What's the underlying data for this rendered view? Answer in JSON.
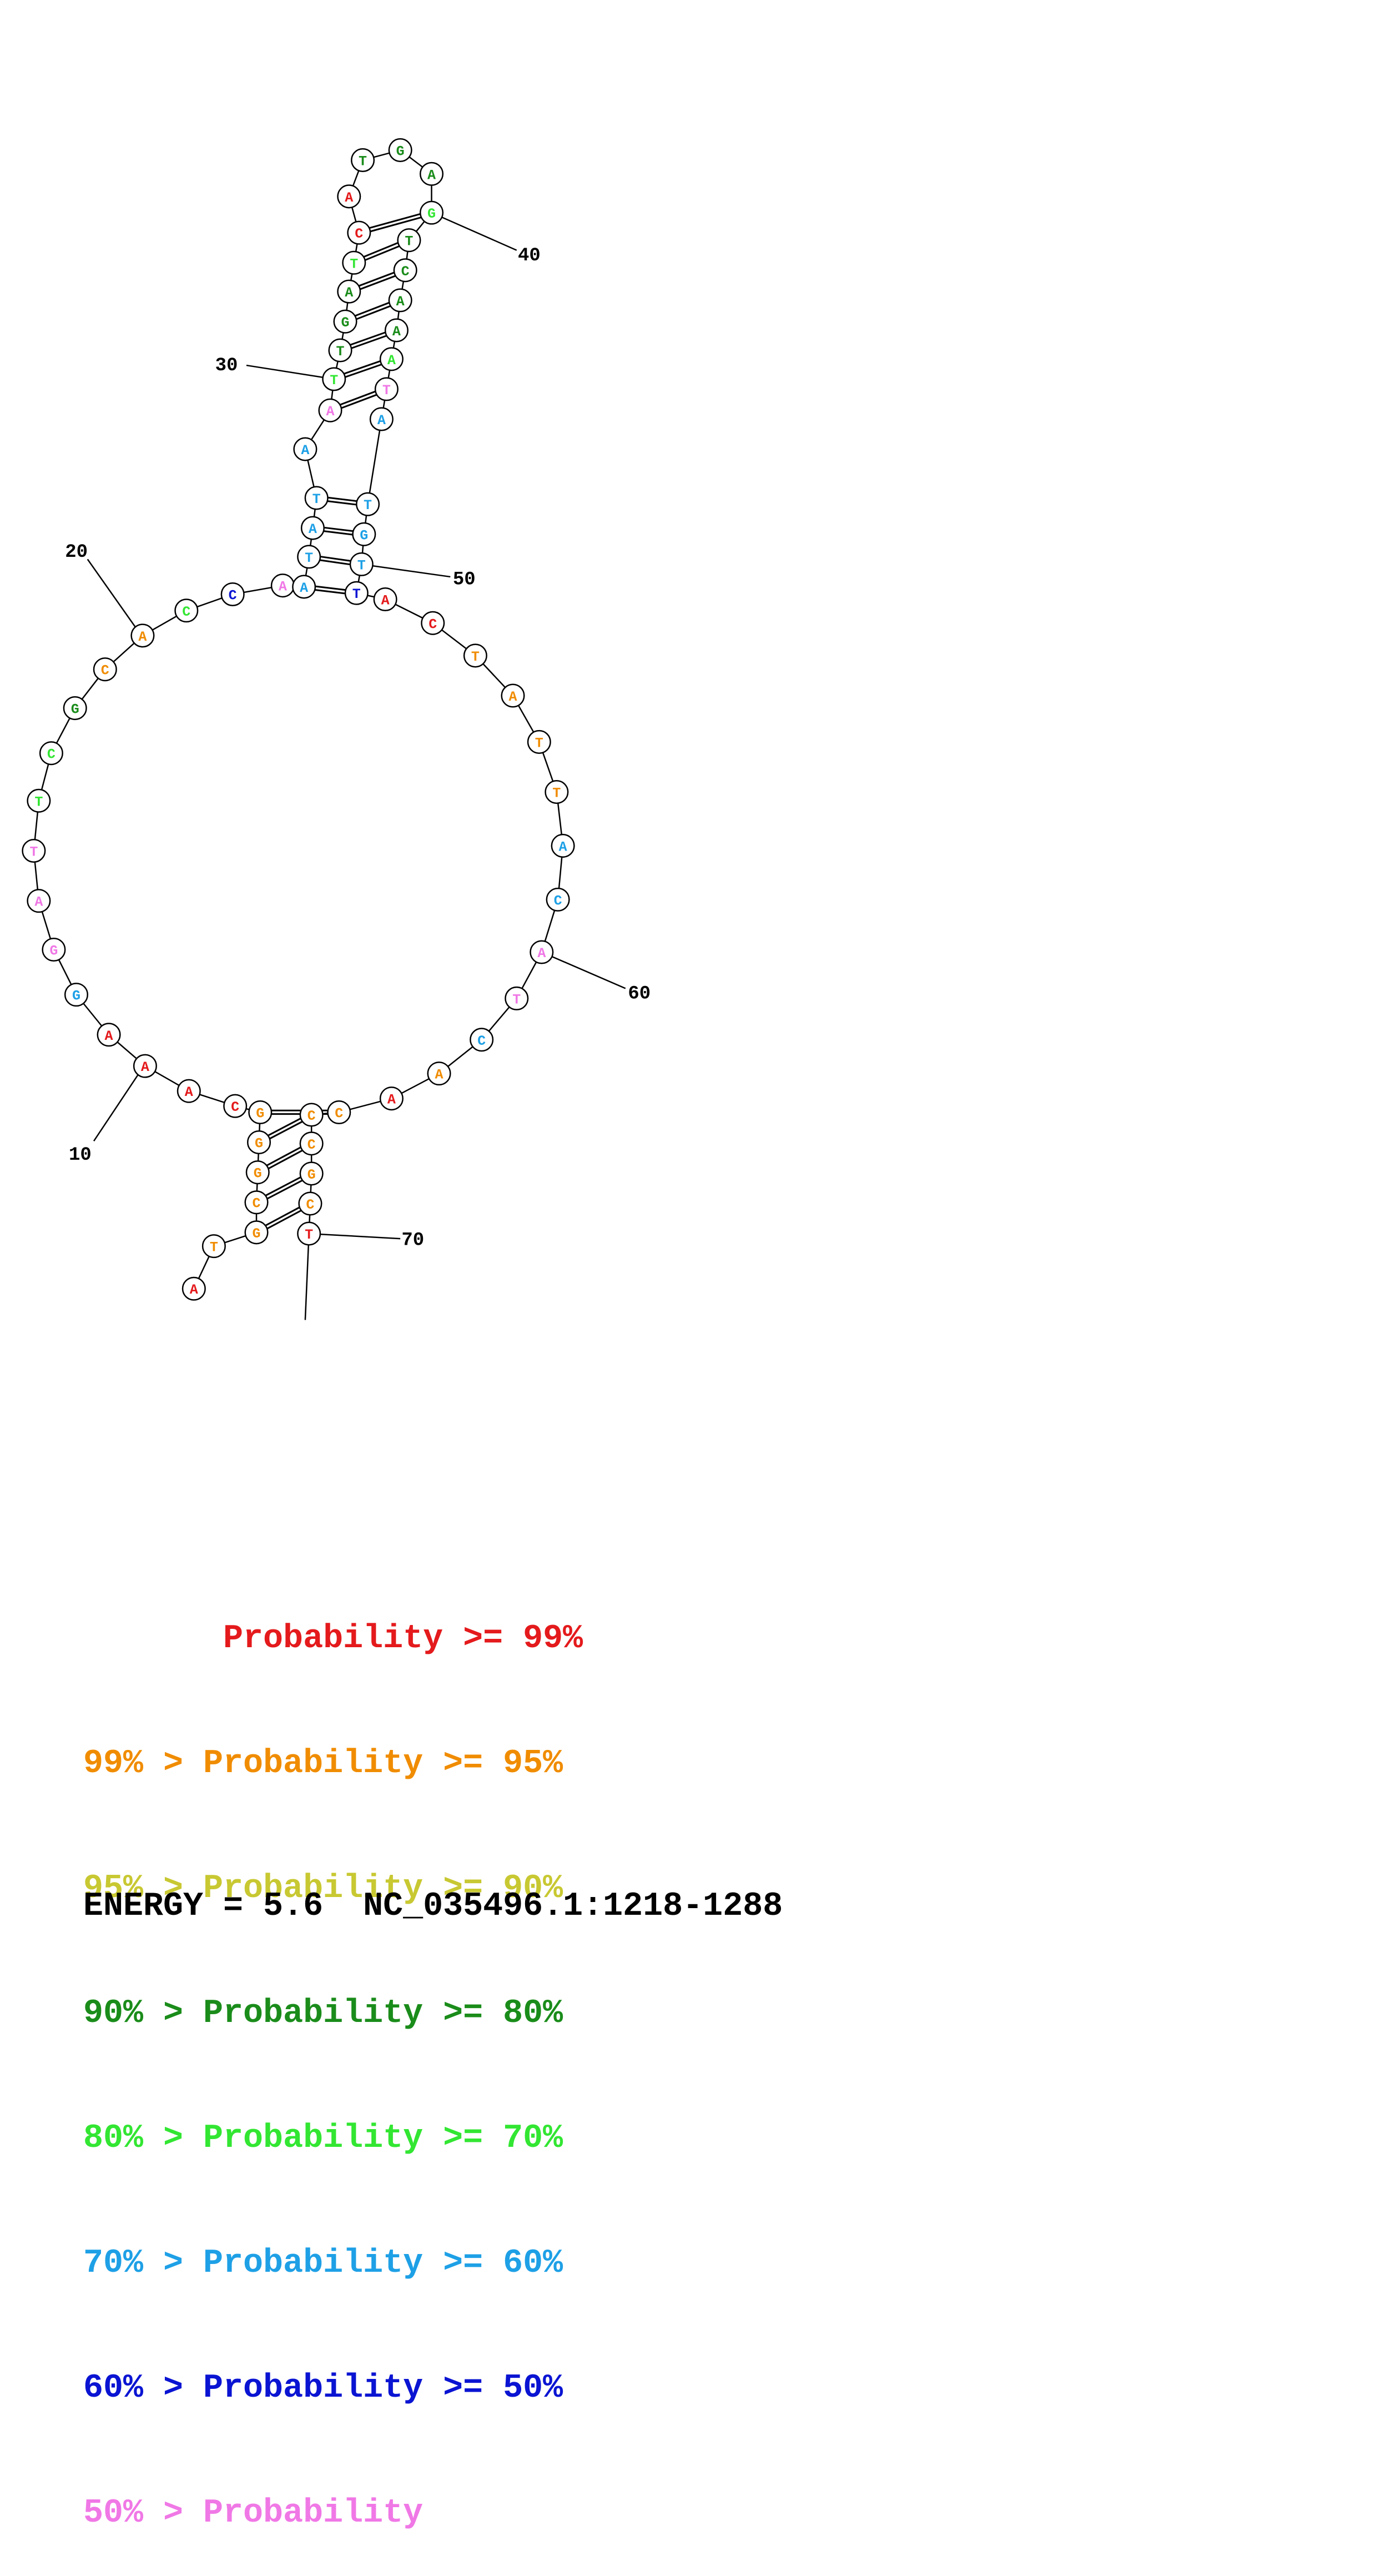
{
  "colors": {
    "red": "#e41a1c",
    "orange": "#f08c00",
    "yellow": "#c8c832",
    "darkgreen": "#1a8c1a",
    "green": "#32e632",
    "cyan": "#1ea0e6",
    "blue": "#0a14d2",
    "pink": "#f078e6",
    "black": "#000000"
  },
  "nucleotides": [
    {
      "b": "A",
      "c": "red"
    },
    {
      "b": "T",
      "c": "orange"
    },
    {
      "b": "G",
      "c": "orange"
    },
    {
      "b": "C",
      "c": "orange"
    },
    {
      "b": "G",
      "c": "orange"
    },
    {
      "b": "G",
      "c": "orange"
    },
    {
      "b": "G",
      "c": "orange"
    },
    {
      "b": "C",
      "c": "red"
    },
    {
      "b": "A",
      "c": "red"
    },
    {
      "b": "A",
      "c": "red"
    },
    {
      "b": "A",
      "c": "red"
    },
    {
      "b": "G",
      "c": "cyan"
    },
    {
      "b": "G",
      "c": "pink"
    },
    {
      "b": "A",
      "c": "pink"
    },
    {
      "b": "T",
      "c": "pink"
    },
    {
      "b": "T",
      "c": "green"
    },
    {
      "b": "C",
      "c": "green"
    },
    {
      "b": "G",
      "c": "darkgreen"
    },
    {
      "b": "C",
      "c": "orange"
    },
    {
      "b": "A",
      "c": "orange"
    },
    {
      "b": "C",
      "c": "green"
    },
    {
      "b": "C",
      "c": "blue"
    },
    {
      "b": "A",
      "c": "pink"
    },
    {
      "b": "A",
      "c": "cyan"
    },
    {
      "b": "T",
      "c": "cyan"
    },
    {
      "b": "A",
      "c": "cyan"
    },
    {
      "b": "T",
      "c": "cyan"
    },
    {
      "b": "A",
      "c": "cyan"
    },
    {
      "b": "A",
      "c": "pink"
    },
    {
      "b": "T",
      "c": "green"
    },
    {
      "b": "T",
      "c": "darkgreen"
    },
    {
      "b": "G",
      "c": "darkgreen"
    },
    {
      "b": "A",
      "c": "darkgreen"
    },
    {
      "b": "T",
      "c": "green"
    },
    {
      "b": "C",
      "c": "red"
    },
    {
      "b": "A",
      "c": "red"
    },
    {
      "b": "T",
      "c": "darkgreen"
    },
    {
      "b": "G",
      "c": "darkgreen"
    },
    {
      "b": "A",
      "c": "darkgreen"
    },
    {
      "b": "G",
      "c": "green"
    },
    {
      "b": "T",
      "c": "darkgreen"
    },
    {
      "b": "C",
      "c": "darkgreen"
    },
    {
      "b": "A",
      "c": "darkgreen"
    },
    {
      "b": "A",
      "c": "darkgreen"
    },
    {
      "b": "A",
      "c": "green"
    },
    {
      "b": "T",
      "c": "pink"
    },
    {
      "b": "A",
      "c": "cyan"
    },
    {
      "b": "T",
      "c": "cyan"
    },
    {
      "b": "G",
      "c": "cyan"
    },
    {
      "b": "T",
      "c": "cyan"
    },
    {
      "b": "T",
      "c": "blue"
    },
    {
      "b": "A",
      "c": "red"
    },
    {
      "b": "C",
      "c": "red"
    },
    {
      "b": "T",
      "c": "orange"
    },
    {
      "b": "A",
      "c": "orange"
    },
    {
      "b": "T",
      "c": "orange"
    },
    {
      "b": "T",
      "c": "orange"
    },
    {
      "b": "A",
      "c": "cyan"
    },
    {
      "b": "C",
      "c": "cyan"
    },
    {
      "b": "A",
      "c": "pink"
    },
    {
      "b": "T",
      "c": "pink"
    },
    {
      "b": "C",
      "c": "cyan"
    },
    {
      "b": "A",
      "c": "orange"
    },
    {
      "b": "A",
      "c": "red"
    },
    {
      "b": "C",
      "c": "orange"
    },
    {
      "b": "C",
      "c": "orange"
    },
    {
      "b": "C",
      "c": "orange"
    },
    {
      "b": "G",
      "c": "orange"
    },
    {
      "b": "C",
      "c": "orange"
    },
    {
      "b": "T",
      "c": "red"
    }
  ],
  "pairs": [
    [
      3,
      69
    ],
    [
      4,
      68
    ],
    [
      5,
      67
    ],
    [
      6,
      66
    ],
    [
      7,
      65
    ],
    [
      24,
      51
    ],
    [
      25,
      50
    ],
    [
      26,
      49
    ],
    [
      27,
      48
    ],
    [
      29,
      46
    ],
    [
      30,
      45
    ],
    [
      31,
      44
    ],
    [
      32,
      43
    ],
    [
      33,
      42
    ],
    [
      34,
      41
    ],
    [
      35,
      40
    ]
  ],
  "position_labels": [
    {
      "n": 10,
      "text": "10"
    },
    {
      "n": 20,
      "text": "20"
    },
    {
      "n": 30,
      "text": "30"
    },
    {
      "n": 40,
      "text": "40"
    },
    {
      "n": 50,
      "text": "50"
    },
    {
      "n": 60,
      "text": "60"
    },
    {
      "n": 70,
      "text": "70"
    }
  ],
  "legend": [
    {
      "text": "       Probability >= 99%",
      "color": "red"
    },
    {
      "text": "99% > Probability >= 95%",
      "color": "orange"
    },
    {
      "text": "95% > Probability >= 90%",
      "color": "yellow"
    },
    {
      "text": "90% > Probability >= 80%",
      "color": "darkgreen"
    },
    {
      "text": "80% > Probability >= 70%",
      "color": "green"
    },
    {
      "text": "70% > Probability >= 60%",
      "color": "cyan"
    },
    {
      "text": "60% > Probability >= 50%",
      "color": "blue"
    },
    {
      "text": "50% > Probability",
      "color": "pink"
    }
  ],
  "energy_text": "ENERGY = 5.6  NC_035496.1:1218-1288"
}
